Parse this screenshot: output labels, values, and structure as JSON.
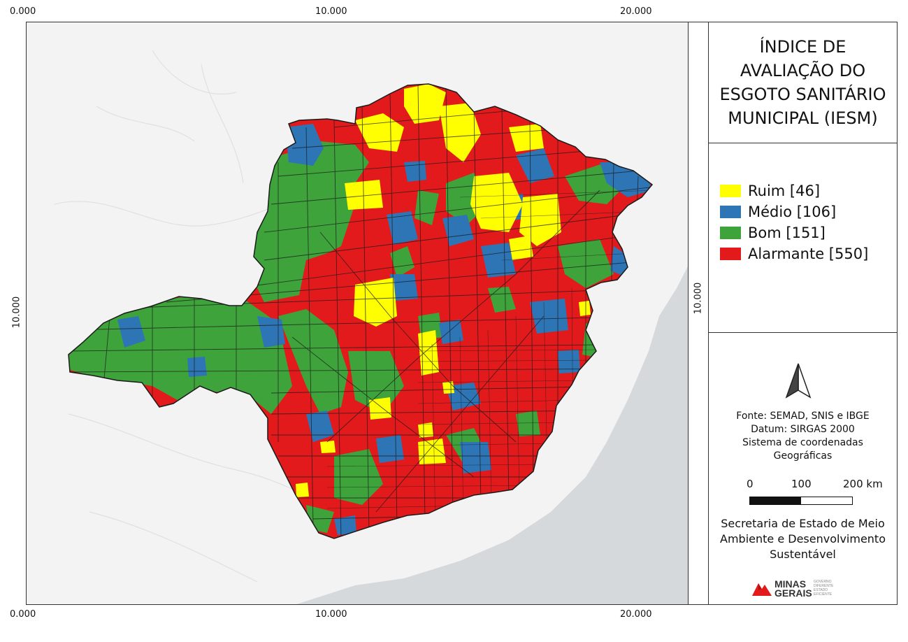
{
  "axes": {
    "x_labels": [
      "0.000",
      "10.000",
      "20.000"
    ],
    "y_label": "10.000"
  },
  "legend": {
    "title": "ÍNDICE DE AVALIAÇÃO DO ESGOTO SANITÁRIO MUNICIPAL (IESM)",
    "items": [
      {
        "label": "Ruim [46]",
        "color": "#ffff00"
      },
      {
        "label": "Médio [106]",
        "color": "#2e75b6"
      },
      {
        "label": "Bom [151]",
        "color": "#3fa33b"
      },
      {
        "label": "Alarmante [550]",
        "color": "#e31a1c"
      }
    ]
  },
  "info": {
    "source_lines": [
      "Fonte: SEMAD, SNIS e IBGE",
      "Datum: SIRGAS 2000",
      "Sistema de coordenadas",
      "Geográficas"
    ],
    "scale_labels": [
      "0",
      "100",
      "200 km"
    ],
    "agency_lines": [
      "Secretaria de Estado de Meio",
      "Ambiente e Desenvolvimento",
      "Sustentável"
    ],
    "logo": {
      "line1": "MINAS",
      "line2": "GERAIS",
      "tagline": [
        "GOVERNO",
        "DIFERENTE",
        "ESTADO",
        "EFICIENTE"
      ]
    }
  },
  "colors": {
    "outline": "#1a1a1a",
    "base_map": "#f3f3f3",
    "ocean": "#d6d9dc"
  }
}
